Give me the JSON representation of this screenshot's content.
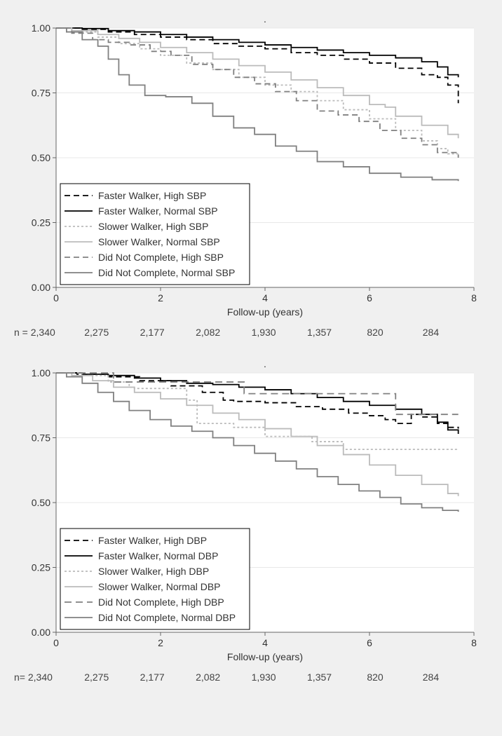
{
  "page": {
    "background_color": "#f0f0f0"
  },
  "chart1": {
    "type": "line",
    "title": ".",
    "xlabel": "Follow-up (years)",
    "ylabel": "",
    "xlim": [
      0,
      8
    ],
    "ylim": [
      0,
      1.0
    ],
    "xticks": [
      0,
      2,
      4,
      6,
      8
    ],
    "yticks": [
      0.0,
      0.25,
      0.5,
      0.75,
      1.0
    ],
    "ytick_labels": [
      "0.00",
      "0.25",
      "0.50",
      "0.75",
      "1.00"
    ],
    "plot_background": "#ffffff",
    "grid_color": "#e8e8e8",
    "axis_color": "#666666",
    "tick_fontsize": 14,
    "label_fontsize": 14,
    "legend_fontsize": 14,
    "legend_position": "lower-left",
    "legend_border_color": "#000000",
    "series": [
      {
        "label": "Faster Walker, High SBP",
        "color": "#000000",
        "dash": "8,5",
        "linewidth": 1.8,
        "data": [
          [
            0,
            1.0
          ],
          [
            0.5,
            0.995
          ],
          [
            1.0,
            0.985
          ],
          [
            1.5,
            0.975
          ],
          [
            2.0,
            0.965
          ],
          [
            2.5,
            0.955
          ],
          [
            3.0,
            0.94
          ],
          [
            3.5,
            0.93
          ],
          [
            4.0,
            0.92
          ],
          [
            4.5,
            0.905
          ],
          [
            5.0,
            0.895
          ],
          [
            5.5,
            0.88
          ],
          [
            6.0,
            0.865
          ],
          [
            6.5,
            0.845
          ],
          [
            7.0,
            0.82
          ],
          [
            7.3,
            0.81
          ],
          [
            7.5,
            0.78
          ],
          [
            7.7,
            0.71
          ]
        ]
      },
      {
        "label": "Faster Walker, Normal SBP",
        "color": "#000000",
        "dash": "none",
        "linewidth": 1.8,
        "data": [
          [
            0,
            1.0
          ],
          [
            0.5,
            0.998
          ],
          [
            1.0,
            0.99
          ],
          [
            1.5,
            0.985
          ],
          [
            2.0,
            0.975
          ],
          [
            2.5,
            0.965
          ],
          [
            3.0,
            0.955
          ],
          [
            3.5,
            0.945
          ],
          [
            4.0,
            0.935
          ],
          [
            4.5,
            0.925
          ],
          [
            5.0,
            0.915
          ],
          [
            5.5,
            0.905
          ],
          [
            6.0,
            0.895
          ],
          [
            6.5,
            0.885
          ],
          [
            7.0,
            0.87
          ],
          [
            7.3,
            0.85
          ],
          [
            7.5,
            0.82
          ],
          [
            7.7,
            0.81
          ]
        ]
      },
      {
        "label": "Slower Walker, High SBP",
        "color": "#bbbbbb",
        "dash": "3,3",
        "linewidth": 1.8,
        "data": [
          [
            0,
            1.0
          ],
          [
            0.3,
            0.985
          ],
          [
            0.8,
            0.965
          ],
          [
            1.2,
            0.94
          ],
          [
            1.6,
            0.92
          ],
          [
            2.0,
            0.895
          ],
          [
            2.5,
            0.865
          ],
          [
            3.0,
            0.84
          ],
          [
            3.5,
            0.81
          ],
          [
            4.0,
            0.78
          ],
          [
            4.5,
            0.755
          ],
          [
            5.0,
            0.72
          ],
          [
            5.5,
            0.685
          ],
          [
            6.0,
            0.65
          ],
          [
            6.5,
            0.605
          ],
          [
            7.0,
            0.565
          ],
          [
            7.3,
            0.535
          ],
          [
            7.5,
            0.515
          ],
          [
            7.7,
            0.505
          ]
        ]
      },
      {
        "label": "Slower Walker, Normal SBP",
        "color": "#bbbbbb",
        "dash": "none",
        "linewidth": 1.8,
        "data": [
          [
            0,
            1.0
          ],
          [
            0.3,
            0.99
          ],
          [
            0.8,
            0.975
          ],
          [
            1.2,
            0.96
          ],
          [
            1.6,
            0.945
          ],
          [
            2.0,
            0.925
          ],
          [
            2.5,
            0.905
          ],
          [
            3.0,
            0.88
          ],
          [
            3.5,
            0.855
          ],
          [
            4.0,
            0.83
          ],
          [
            4.5,
            0.8
          ],
          [
            5.0,
            0.77
          ],
          [
            5.5,
            0.74
          ],
          [
            6.0,
            0.705
          ],
          [
            6.3,
            0.695
          ],
          [
            6.5,
            0.66
          ],
          [
            7.0,
            0.625
          ],
          [
            7.5,
            0.59
          ],
          [
            7.7,
            0.575
          ]
        ]
      },
      {
        "label": "Did Not Complete, High SBP",
        "color": "#808080",
        "dash": "8,5",
        "linewidth": 1.8,
        "data": [
          [
            0,
            1.0
          ],
          [
            0.3,
            0.98
          ],
          [
            0.7,
            0.955
          ],
          [
            1.0,
            0.945
          ],
          [
            1.4,
            0.935
          ],
          [
            1.8,
            0.91
          ],
          [
            2.2,
            0.895
          ],
          [
            2.6,
            0.86
          ],
          [
            3.0,
            0.84
          ],
          [
            3.4,
            0.81
          ],
          [
            3.8,
            0.785
          ],
          [
            4.2,
            0.755
          ],
          [
            4.6,
            0.72
          ],
          [
            5.0,
            0.68
          ],
          [
            5.4,
            0.665
          ],
          [
            5.8,
            0.64
          ],
          [
            6.2,
            0.605
          ],
          [
            6.6,
            0.575
          ],
          [
            7.0,
            0.55
          ],
          [
            7.3,
            0.52
          ],
          [
            7.7,
            0.5
          ]
        ]
      },
      {
        "label": "Did Not Complete, Normal SBP",
        "color": "#808080",
        "dash": "none",
        "linewidth": 1.8,
        "data": [
          [
            0,
            1.0
          ],
          [
            0.2,
            0.985
          ],
          [
            0.5,
            0.955
          ],
          [
            0.8,
            0.93
          ],
          [
            1.0,
            0.88
          ],
          [
            1.2,
            0.82
          ],
          [
            1.4,
            0.78
          ],
          [
            1.7,
            0.74
          ],
          [
            2.1,
            0.735
          ],
          [
            2.6,
            0.71
          ],
          [
            3.0,
            0.66
          ],
          [
            3.4,
            0.615
          ],
          [
            3.8,
            0.59
          ],
          [
            4.2,
            0.545
          ],
          [
            4.6,
            0.525
          ],
          [
            5.0,
            0.485
          ],
          [
            5.5,
            0.465
          ],
          [
            6.0,
            0.44
          ],
          [
            6.6,
            0.425
          ],
          [
            7.2,
            0.415
          ],
          [
            7.7,
            0.41
          ]
        ]
      }
    ]
  },
  "risk_table1": {
    "prefix": "n = ",
    "values": [
      "2,340",
      "2,275",
      "2,177",
      "2,082",
      "1,930",
      "1,357",
      "820",
      "284"
    ],
    "fontsize": 14,
    "color": "#444444"
  },
  "chart2": {
    "type": "line",
    "title": ".",
    "xlabel": "Follow-up (years)",
    "ylabel": "",
    "xlim": [
      0,
      8
    ],
    "ylim": [
      0,
      1.0
    ],
    "xticks": [
      0,
      2,
      4,
      6,
      8
    ],
    "yticks": [
      0.0,
      0.25,
      0.5,
      0.75,
      1.0
    ],
    "ytick_labels": [
      "0.00",
      "0.25",
      "0.50",
      "0.75",
      "1.00"
    ],
    "plot_background": "#ffffff",
    "grid_color": "#e8e8e8",
    "axis_color": "#666666",
    "tick_fontsize": 14,
    "label_fontsize": 14,
    "legend_fontsize": 14,
    "legend_position": "lower-left",
    "legend_border_color": "#000000",
    "series": [
      {
        "label": "Faster Walker, High DBP",
        "color": "#000000",
        "dash": "8,5",
        "linewidth": 1.8,
        "data": [
          [
            0,
            1.0
          ],
          [
            0.4,
            0.995
          ],
          [
            1.0,
            0.985
          ],
          [
            1.6,
            0.97
          ],
          [
            2.2,
            0.95
          ],
          [
            2.8,
            0.925
          ],
          [
            3.2,
            0.895
          ],
          [
            3.4,
            0.89
          ],
          [
            4.0,
            0.885
          ],
          [
            4.6,
            0.87
          ],
          [
            5.1,
            0.86
          ],
          [
            5.6,
            0.845
          ],
          [
            6.0,
            0.835
          ],
          [
            6.3,
            0.82
          ],
          [
            6.5,
            0.805
          ],
          [
            6.8,
            0.84
          ],
          [
            7.0,
            0.83
          ],
          [
            7.3,
            0.805
          ],
          [
            7.5,
            0.79
          ],
          [
            7.7,
            0.785
          ]
        ]
      },
      {
        "label": "Faster Walker, Normal DBP",
        "color": "#000000",
        "dash": "none",
        "linewidth": 1.8,
        "data": [
          [
            0,
            1.0
          ],
          [
            0.5,
            0.995
          ],
          [
            1.0,
            0.99
          ],
          [
            1.5,
            0.98
          ],
          [
            2.0,
            0.97
          ],
          [
            2.5,
            0.96
          ],
          [
            3.0,
            0.955
          ],
          [
            3.5,
            0.945
          ],
          [
            4.0,
            0.935
          ],
          [
            4.5,
            0.92
          ],
          [
            5.0,
            0.905
          ],
          [
            5.5,
            0.89
          ],
          [
            6.0,
            0.875
          ],
          [
            6.5,
            0.86
          ],
          [
            7.0,
            0.84
          ],
          [
            7.3,
            0.81
          ],
          [
            7.5,
            0.78
          ],
          [
            7.7,
            0.765
          ]
        ]
      },
      {
        "label": "Slower Walker, High DBP",
        "color": "#bbbbbb",
        "dash": "3,3",
        "linewidth": 1.8,
        "data": [
          [
            0,
            1.0
          ],
          [
            0.5,
            0.99
          ],
          [
            1.0,
            0.965
          ],
          [
            1.4,
            0.945
          ],
          [
            1.5,
            0.94
          ],
          [
            2.4,
            0.94
          ],
          [
            2.5,
            0.895
          ],
          [
            2.7,
            0.805
          ],
          [
            3.3,
            0.805
          ],
          [
            3.4,
            0.79
          ],
          [
            3.9,
            0.79
          ],
          [
            4.0,
            0.755
          ],
          [
            4.8,
            0.755
          ],
          [
            4.9,
            0.735
          ],
          [
            5.4,
            0.735
          ],
          [
            5.5,
            0.705
          ],
          [
            7.7,
            0.705
          ]
        ]
      },
      {
        "label": "Slower Walker, Normal DBP",
        "color": "#bbbbbb",
        "dash": "none",
        "linewidth": 1.8,
        "data": [
          [
            0,
            1.0
          ],
          [
            0.3,
            0.99
          ],
          [
            0.7,
            0.97
          ],
          [
            1.1,
            0.945
          ],
          [
            1.5,
            0.925
          ],
          [
            2.0,
            0.9
          ],
          [
            2.5,
            0.875
          ],
          [
            3.0,
            0.845
          ],
          [
            3.5,
            0.82
          ],
          [
            4.0,
            0.785
          ],
          [
            4.5,
            0.755
          ],
          [
            5.0,
            0.72
          ],
          [
            5.5,
            0.685
          ],
          [
            6.0,
            0.645
          ],
          [
            6.5,
            0.605
          ],
          [
            7.0,
            0.57
          ],
          [
            7.5,
            0.535
          ],
          [
            7.7,
            0.525
          ]
        ]
      },
      {
        "label": "Did Not Complete, High DBP",
        "color": "#808080",
        "dash": "10,6",
        "linewidth": 1.8,
        "data": [
          [
            0,
            1.0
          ],
          [
            1.0,
            1.0
          ],
          [
            1.1,
            0.965
          ],
          [
            3.5,
            0.965
          ],
          [
            3.6,
            0.92
          ],
          [
            6.4,
            0.92
          ],
          [
            6.5,
            0.84
          ],
          [
            7.7,
            0.84
          ]
        ]
      },
      {
        "label": "Did Not Complete, Normal DBP",
        "color": "#808080",
        "dash": "none",
        "linewidth": 1.8,
        "data": [
          [
            0,
            1.0
          ],
          [
            0.2,
            0.985
          ],
          [
            0.5,
            0.96
          ],
          [
            0.8,
            0.925
          ],
          [
            1.1,
            0.89
          ],
          [
            1.4,
            0.855
          ],
          [
            1.8,
            0.82
          ],
          [
            2.2,
            0.795
          ],
          [
            2.6,
            0.775
          ],
          [
            3.0,
            0.75
          ],
          [
            3.4,
            0.72
          ],
          [
            3.8,
            0.69
          ],
          [
            4.2,
            0.66
          ],
          [
            4.6,
            0.63
          ],
          [
            5.0,
            0.6
          ],
          [
            5.4,
            0.57
          ],
          [
            5.8,
            0.545
          ],
          [
            6.2,
            0.52
          ],
          [
            6.6,
            0.495
          ],
          [
            7.0,
            0.48
          ],
          [
            7.4,
            0.47
          ],
          [
            7.7,
            0.465
          ]
        ]
      }
    ]
  },
  "risk_table2": {
    "prefix": "n= ",
    "values": [
      "2,340",
      "2,275",
      "2,177",
      "2,082",
      "1,930",
      "1,357",
      "820",
      "284"
    ],
    "fontsize": 14,
    "color": "#444444"
  }
}
